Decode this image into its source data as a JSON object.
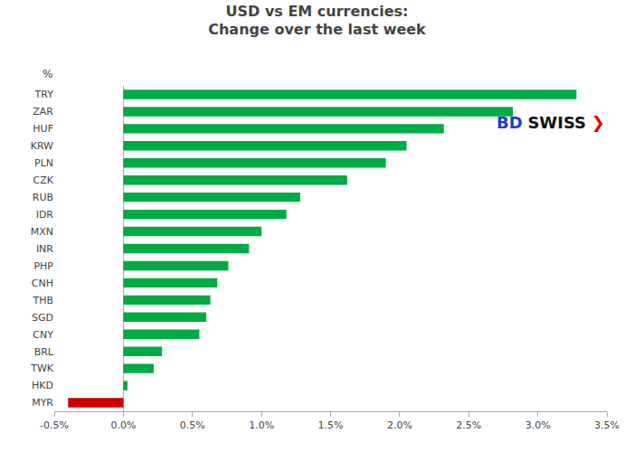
{
  "chart_data": {
    "type": "bar",
    "orientation": "horizontal",
    "title": "USD vs EM currencies:\nChange over the last week",
    "ylabel": "%",
    "categories": [
      "TRY",
      "ZAR",
      "HUF",
      "KRW",
      "PLN",
      "CZK",
      "RUB",
      "IDR",
      "MXN",
      "INR",
      "PHP",
      "CNH",
      "THB",
      "SGD",
      "CNY",
      "BRL",
      "TWK",
      "HKD",
      "MYR"
    ],
    "values": [
      3.28,
      2.82,
      2.32,
      2.05,
      1.9,
      1.62,
      1.28,
      1.18,
      1.0,
      0.91,
      0.76,
      0.68,
      0.63,
      0.6,
      0.55,
      0.28,
      0.22,
      0.03,
      -0.4
    ],
    "colors": [
      "#00aa44",
      "#00aa44",
      "#00aa44",
      "#00aa44",
      "#00aa44",
      "#00aa44",
      "#00aa44",
      "#00aa44",
      "#00aa44",
      "#00aa44",
      "#00aa44",
      "#00aa44",
      "#00aa44",
      "#00aa44",
      "#00aa44",
      "#00aa44",
      "#00aa44",
      "#00aa44",
      "#cc0000"
    ],
    "xlim": [
      -0.5,
      3.5
    ],
    "xticks": [
      {
        "value": -0.5,
        "label": "-0.5%"
      },
      {
        "value": 0.0,
        "label": "0.0%"
      },
      {
        "value": 0.5,
        "label": "0.5%"
      },
      {
        "value": 1.0,
        "label": "1.0%"
      },
      {
        "value": 1.5,
        "label": "1.5%"
      },
      {
        "value": 2.0,
        "label": "2.0%"
      },
      {
        "value": 2.5,
        "label": "2.5%"
      },
      {
        "value": 3.0,
        "label": "3.0%"
      },
      {
        "value": 3.5,
        "label": "3.5%"
      }
    ],
    "grid": false,
    "annotations": [
      {
        "text": "BD",
        "color": "#1a3fcc"
      },
      {
        "text": "SWISS",
        "color": "#111111"
      },
      {
        "text": "❯",
        "color": "#dd0000"
      }
    ]
  }
}
